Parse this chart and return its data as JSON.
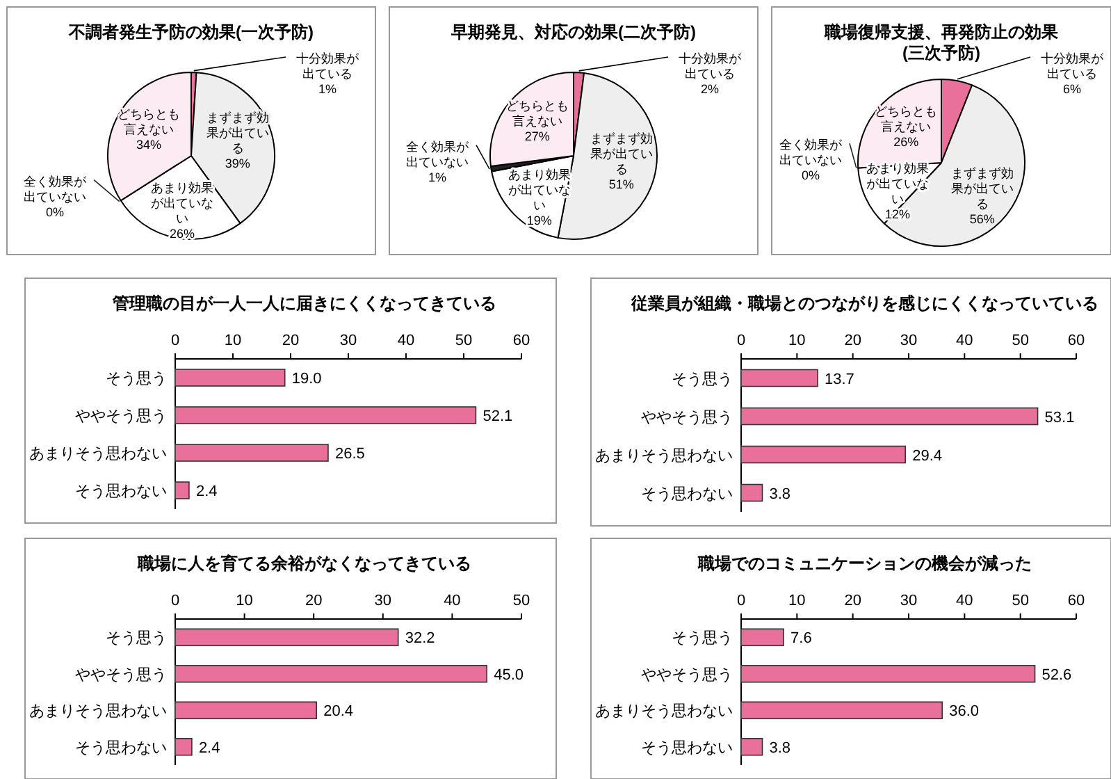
{
  "chart_data": [
    {
      "type": "pie",
      "title": "不調者発生予防の効果(一次予防)",
      "categories": [
        "十分効果が出ている",
        "まずまず効果が出ている",
        "あまり効果が出ていない",
        "全く効果が出ていない",
        "どちらとも言えない"
      ],
      "values": [
        1,
        39,
        26,
        0,
        34
      ],
      "value_labels": [
        "1%",
        "39%",
        "26%",
        "0%",
        "34%"
      ],
      "colors": [
        "#e8709a",
        "#eeeeee",
        "#ffffff",
        "#222222",
        "#fcebf2"
      ]
    },
    {
      "type": "pie",
      "title": "早期発見、対応の効果(二次予防)",
      "categories": [
        "十分効果が出ている",
        "まずまず効果が出ている",
        "あまり効果が出ていない",
        "全く効果が出ていない",
        "どちらとも言えない"
      ],
      "values": [
        2,
        51,
        19,
        1,
        27
      ],
      "value_labels": [
        "2%",
        "51%",
        "19%",
        "1%",
        "27%"
      ],
      "colors": [
        "#e8709a",
        "#eeeeee",
        "#ffffff",
        "#222222",
        "#fcebf2"
      ]
    },
    {
      "type": "pie",
      "title": "職場復帰支援、再発防止の効果(三次予防)",
      "categories": [
        "十分効果が出ている",
        "まずまず効果が出ている",
        "あまり効果が出ていない",
        "全く効果が出ていない",
        "どちらとも言えない"
      ],
      "values": [
        6,
        56,
        12,
        0,
        26
      ],
      "value_labels": [
        "6%",
        "56%",
        "12%",
        "0%",
        "26%"
      ],
      "colors": [
        "#e8709a",
        "#eeeeee",
        "#ffffff",
        "#222222",
        "#fcebf2"
      ]
    },
    {
      "type": "bar",
      "orientation": "horizontal",
      "title": "管理職の目が一人一人に届きにくくなってきている",
      "categories": [
        "そう思う",
        "ややそう思う",
        "あまりそう思わない",
        "そう思わない"
      ],
      "values": [
        19.0,
        52.1,
        26.5,
        2.4
      ],
      "value_labels": [
        "19.0",
        "52.1",
        "26.5",
        "2.4"
      ],
      "color": "#e8709a",
      "xlim": [
        0,
        60
      ],
      "xticks": [
        0,
        10,
        20,
        30,
        40,
        50,
        60
      ]
    },
    {
      "type": "bar",
      "orientation": "horizontal",
      "title": "従業員が組織・職場とのつながりを感じにくくなっていている",
      "categories": [
        "そう思う",
        "ややそう思う",
        "あまりそう思わない",
        "そう思わない"
      ],
      "values": [
        13.7,
        53.1,
        29.4,
        3.8
      ],
      "value_labels": [
        "13.7",
        "53.1",
        "29.4",
        "3.8"
      ],
      "color": "#e8709a",
      "xlim": [
        0,
        60
      ],
      "xticks": [
        0,
        10,
        20,
        30,
        40,
        50,
        60
      ]
    },
    {
      "type": "bar",
      "orientation": "horizontal",
      "title": "職場に人を育てる余裕がなくなってきている",
      "categories": [
        "そう思う",
        "ややそう思う",
        "あまりそう思わない",
        "そう思わない"
      ],
      "values": [
        32.2,
        45.0,
        20.4,
        2.4
      ],
      "value_labels": [
        "32.2",
        "45.0",
        "20.4",
        "2.4"
      ],
      "color": "#e8709a",
      "xlim": [
        0,
        50
      ],
      "xticks": [
        0,
        10,
        20,
        30,
        40,
        50
      ]
    },
    {
      "type": "bar",
      "orientation": "horizontal",
      "title": "職場でのコミュニケーションの機会が減った",
      "categories": [
        "そう思う",
        "ややそう思う",
        "あまりそう思わない",
        "そう思わない"
      ],
      "values": [
        7.6,
        52.6,
        36.0,
        3.8
      ],
      "value_labels": [
        "7.6",
        "52.6",
        "36.0",
        "3.8"
      ],
      "color": "#e8709a",
      "xlim": [
        0,
        60
      ],
      "xticks": [
        0,
        10,
        20,
        30,
        40,
        50,
        60
      ]
    }
  ]
}
